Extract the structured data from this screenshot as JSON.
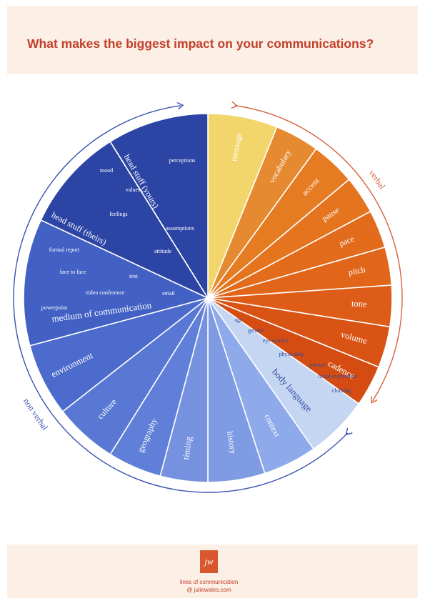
{
  "title": "What makes the biggest impact on your communications?",
  "footer": {
    "logo": "jw",
    "line1": "lines of communication",
    "line2": "@ juliewales.com"
  },
  "group_labels": {
    "verbal": "verbal",
    "non_verbal": "non verbal"
  },
  "segments": [
    {
      "name": "message",
      "color": "#f2d56b",
      "text_color": "#ffffff"
    },
    {
      "name": "vocabulary",
      "color": "#e58a30",
      "text_color": "#ffffff"
    },
    {
      "name": "accent",
      "color": "#e57c22",
      "text_color": "#ffffff"
    },
    {
      "name": "pause",
      "color": "#e5741f",
      "text_color": "#ffffff"
    },
    {
      "name": "pace",
      "color": "#e36c1c",
      "text_color": "#ffffff"
    },
    {
      "name": "pitch",
      "color": "#e1661a",
      "text_color": "#ffffff"
    },
    {
      "name": "tone",
      "color": "#dd5c17",
      "text_color": "#ffffff"
    },
    {
      "name": "volume",
      "color": "#d95314",
      "text_color": "#ffffff"
    },
    {
      "name": "cadence",
      "color": "#d44c12",
      "text_color": "#ffffff"
    },
    {
      "name": "body language",
      "color": "#c5d6f3",
      "text_color": "#2e4a9c",
      "items": [
        "age",
        "gender",
        "eye contact",
        "physicality",
        "posture",
        "facial expression",
        "clothing"
      ]
    },
    {
      "name": "context",
      "color": "#8eaaea",
      "text_color": "#ffffff"
    },
    {
      "name": "history",
      "color": "#7f9be3",
      "text_color": "#ffffff"
    },
    {
      "name": "timing",
      "color": "#7591e0",
      "text_color": "#ffffff"
    },
    {
      "name": "geography",
      "color": "#5f7fd8",
      "text_color": "#ffffff"
    },
    {
      "name": "culture",
      "color": "#5878d4",
      "text_color": "#ffffff"
    },
    {
      "name": "environment",
      "color": "#4c6bcc",
      "text_color": "#ffffff"
    },
    {
      "name": "medium of communication",
      "color": "#4361c4",
      "text_color": "#ffffff",
      "items": [
        "formal report",
        "face to face",
        "text",
        "video conference",
        "email",
        "powerpoint"
      ]
    },
    {
      "name": "head stuff (theirs)",
      "color": "#2c45a5",
      "text_color": "#ffffff"
    },
    {
      "name": "head stuff (yours)",
      "color": "#2c45a5",
      "text_color": "#ffffff",
      "items": [
        "perceptions",
        "mood",
        "values",
        "feelings",
        "assumptions",
        "attitude"
      ]
    }
  ]
}
